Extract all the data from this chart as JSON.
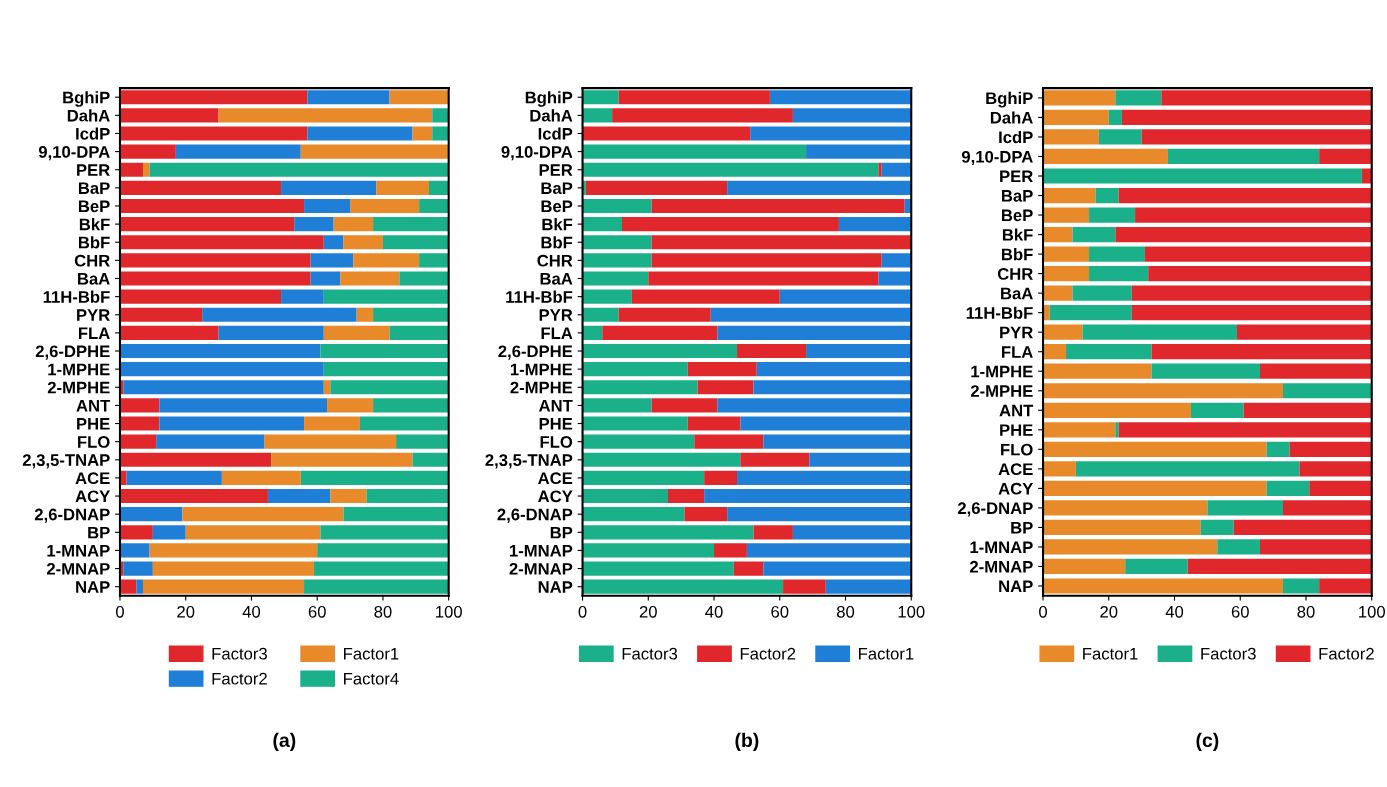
{
  "chart_data": [
    {
      "type": "bar",
      "orientation": "horizontal",
      "stacked": true,
      "legend": "bottom",
      "grid": false,
      "xlim": [
        0,
        100
      ],
      "xticks": [
        0,
        20,
        40,
        60,
        80,
        100
      ],
      "annotations": [
        "(a)"
      ],
      "categories": [
        "BghiP",
        "DahA",
        "IcdP",
        "9,10-DPA",
        "PER",
        "BaP",
        "BeP",
        "BkF",
        "BbF",
        "CHR",
        "BaA",
        "11H-BbF",
        "PYR",
        "FLA",
        "2,6-DPHE",
        "1-MPHE",
        "2-MPHE",
        "ANT",
        "PHE",
        "FLO",
        "2,3,5-TNAP",
        "ACE",
        "ACY",
        "2,6-DNAP",
        "BP",
        "1-MNAP",
        "2-MNAP",
        "NAP"
      ],
      "series": [
        {
          "name": "Factor3",
          "color": "#e0282c",
          "values": [
            57,
            30,
            57,
            17,
            7,
            49,
            56,
            53,
            62,
            58,
            58,
            49,
            25,
            30,
            0,
            0,
            1,
            12,
            12,
            11,
            46,
            2,
            45,
            0,
            10,
            0,
            1,
            5
          ]
        },
        {
          "name": "Factor2",
          "color": "#1f7fd6",
          "values": [
            25,
            0,
            32,
            38,
            0,
            29,
            14,
            12,
            6,
            13,
            9,
            13,
            47,
            32,
            61,
            62,
            61,
            51,
            44,
            33,
            0,
            29,
            19,
            19,
            10,
            9,
            9,
            2
          ]
        },
        {
          "name": "Factor1",
          "color": "#e8892a",
          "values": [
            18,
            65,
            6,
            45,
            2,
            16,
            21,
            12,
            12,
            20,
            18,
            0,
            5,
            20,
            0,
            0,
            2,
            14,
            17,
            40,
            43,
            24,
            11,
            49,
            41,
            51,
            49,
            49
          ]
        },
        {
          "name": "Factor4",
          "color": "#1ab08a",
          "values": [
            0,
            5,
            5,
            0,
            91,
            6,
            9,
            23,
            20,
            9,
            15,
            38,
            23,
            18,
            39,
            38,
            36,
            23,
            27,
            16,
            11,
            45,
            25,
            32,
            39,
            40,
            41,
            44
          ]
        }
      ]
    },
    {
      "type": "bar",
      "orientation": "horizontal",
      "stacked": true,
      "legend": "bottom",
      "grid": false,
      "xlim": [
        0,
        100
      ],
      "xticks": [
        0,
        20,
        40,
        60,
        80,
        100
      ],
      "annotations": [
        "(b)"
      ],
      "categories": [
        "BghiP",
        "DahA",
        "IcdP",
        "9,10-DPA",
        "PER",
        "BaP",
        "BeP",
        "BkF",
        "BbF",
        "CHR",
        "BaA",
        "11H-BbF",
        "PYR",
        "FLA",
        "2,6-DPHE",
        "1-MPHE",
        "2-MPHE",
        "ANT",
        "PHE",
        "FLO",
        "2,3,5-TNAP",
        "ACE",
        "ACY",
        "2,6-DNAP",
        "BP",
        "1-MNAP",
        "2-MNAP",
        "NAP"
      ],
      "series": [
        {
          "name": "Factor3",
          "color": "#1ab08a",
          "values": [
            11,
            9,
            0,
            68,
            90,
            1,
            21,
            12,
            21,
            21,
            20,
            15,
            11,
            6,
            47,
            32,
            35,
            21,
            32,
            34,
            48,
            37,
            26,
            31,
            52,
            40,
            46,
            61
          ]
        },
        {
          "name": "Factor2",
          "color": "#e0282c",
          "values": [
            46,
            55,
            51,
            0,
            1,
            43,
            77,
            66,
            79,
            70,
            70,
            45,
            28,
            35,
            21,
            21,
            17,
            20,
            16,
            21,
            21,
            10,
            11,
            13,
            12,
            10,
            9,
            13
          ]
        },
        {
          "name": "Factor1",
          "color": "#1f7fd6",
          "values": [
            43,
            36,
            49,
            32,
            9,
            56,
            2,
            22,
            0,
            9,
            10,
            40,
            61,
            59,
            32,
            47,
            48,
            59,
            52,
            45,
            31,
            53,
            63,
            56,
            36,
            50,
            45,
            26
          ]
        }
      ]
    },
    {
      "type": "bar",
      "orientation": "horizontal",
      "stacked": true,
      "legend": "bottom",
      "grid": false,
      "xlim": [
        0,
        100
      ],
      "xticks": [
        0,
        20,
        40,
        60,
        80,
        100
      ],
      "annotations": [
        "(c)"
      ],
      "categories": [
        "BghiP",
        "DahA",
        "IcdP",
        "9,10-DPA",
        "PER",
        "BaP",
        "BeP",
        "BkF",
        "BbF",
        "CHR",
        "BaA",
        "11H-BbF",
        "PYR",
        "FLA",
        "1-MPHE",
        "2-MPHE",
        "ANT",
        "PHE",
        "FLO",
        "ACE",
        "ACY",
        "2,6-DNAP",
        "BP",
        "1-MNAP",
        "2-MNAP",
        "NAP"
      ],
      "series": [
        {
          "name": "Factor1",
          "color": "#e8892a",
          "values": [
            22,
            20,
            17,
            38,
            0,
            16,
            14,
            9,
            14,
            14,
            9,
            2,
            12,
            7,
            33,
            73,
            45,
            22,
            68,
            10,
            68,
            50,
            48,
            53,
            25,
            73
          ]
        },
        {
          "name": "Factor3",
          "color": "#1ab08a",
          "values": [
            14,
            4,
            13,
            46,
            97,
            7,
            14,
            13,
            17,
            18,
            18,
            25,
            47,
            26,
            33,
            27,
            16,
            1,
            7,
            68,
            13,
            23,
            10,
            13,
            19,
            11
          ]
        },
        {
          "name": "Factor2",
          "color": "#e0282c",
          "values": [
            64,
            76,
            70,
            16,
            3,
            77,
            72,
            78,
            69,
            68,
            73,
            73,
            41,
            67,
            34,
            0,
            39,
            77,
            25,
            22,
            19,
            27,
            42,
            34,
            56,
            16
          ]
        }
      ]
    }
  ]
}
